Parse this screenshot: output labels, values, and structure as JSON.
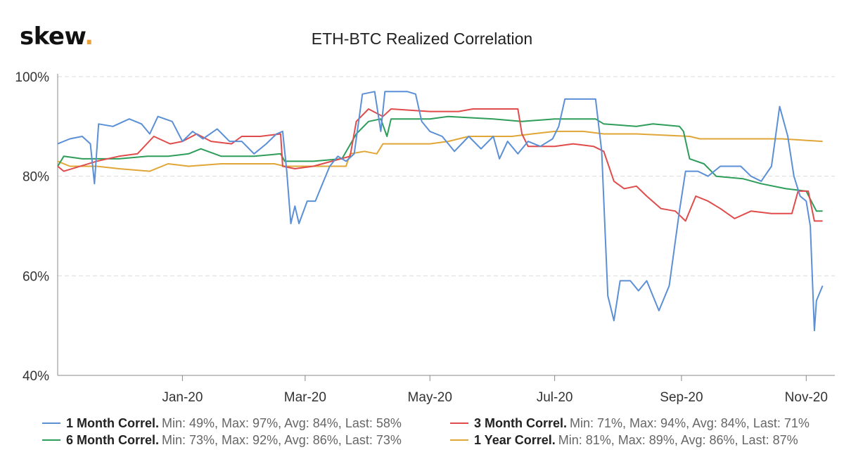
{
  "logo": {
    "text": "skew",
    "dot": "."
  },
  "chart_data": {
    "type": "line",
    "title": "ETH-BTC Realized Correlation",
    "ylim": [
      40,
      100
    ],
    "yticks": [
      "40%",
      "60%",
      "80%",
      "100%"
    ],
    "ytick_values": [
      40,
      60,
      80,
      100
    ],
    "x_range": [
      "2019-11-01",
      "2020-11-15"
    ],
    "xticks": [
      {
        "label": "Jan-20",
        "date": "2020-01-01"
      },
      {
        "label": "Mar-20",
        "date": "2020-03-01"
      },
      {
        "label": "May-20",
        "date": "2020-05-01"
      },
      {
        "label": "Jul-20",
        "date": "2020-07-01"
      },
      {
        "label": "Sep-20",
        "date": "2020-09-01"
      },
      {
        "label": "Nov-20",
        "date": "2020-11-01"
      }
    ],
    "grid": true,
    "legend_position": "bottom",
    "series": [
      {
        "name": "1 Month Correl.",
        "stats": "Min: 49%, Max: 97%, Avg: 84%, Last: 58%",
        "color": "#5b8fd6",
        "points": [
          [
            "2019-11-01",
            86.5
          ],
          [
            "2019-11-07",
            87.5
          ],
          [
            "2019-11-13",
            88
          ],
          [
            "2019-11-17",
            86.5
          ],
          [
            "2019-11-19",
            78.5
          ],
          [
            "2019-11-21",
            90.5
          ],
          [
            "2019-11-28",
            90
          ],
          [
            "2019-12-06",
            91.5
          ],
          [
            "2019-12-12",
            90.5
          ],
          [
            "2019-12-16",
            88.5
          ],
          [
            "2019-12-20",
            92
          ],
          [
            "2019-12-27",
            91
          ],
          [
            "2020-01-01",
            87
          ],
          [
            "2020-01-06",
            89
          ],
          [
            "2020-01-11",
            87.5
          ],
          [
            "2020-01-18",
            89.5
          ],
          [
            "2020-01-24",
            87
          ],
          [
            "2020-01-30",
            87
          ],
          [
            "2020-02-05",
            84.5
          ],
          [
            "2020-02-11",
            86.5
          ],
          [
            "2020-02-16",
            88.5
          ],
          [
            "2020-02-19",
            89
          ],
          [
            "2020-02-21",
            81
          ],
          [
            "2020-02-23",
            70.5
          ],
          [
            "2020-02-25",
            74
          ],
          [
            "2020-02-27",
            70.5
          ],
          [
            "2020-03-02",
            75
          ],
          [
            "2020-03-06",
            75
          ],
          [
            "2020-03-10",
            79
          ],
          [
            "2020-03-13",
            82
          ],
          [
            "2020-03-17",
            84
          ],
          [
            "2020-03-21",
            83
          ],
          [
            "2020-03-25",
            84.5
          ],
          [
            "2020-03-29",
            96.5
          ],
          [
            "2020-04-04",
            97
          ],
          [
            "2020-04-07",
            89
          ],
          [
            "2020-04-09",
            97
          ],
          [
            "2020-04-20",
            97
          ],
          [
            "2020-04-24",
            96.5
          ],
          [
            "2020-04-27",
            91
          ],
          [
            "2020-05-01",
            89
          ],
          [
            "2020-05-07",
            88
          ],
          [
            "2020-05-13",
            85
          ],
          [
            "2020-05-20",
            88
          ],
          [
            "2020-05-26",
            85.5
          ],
          [
            "2020-06-01",
            88
          ],
          [
            "2020-06-04",
            83.5
          ],
          [
            "2020-06-08",
            87
          ],
          [
            "2020-06-13",
            84.5
          ],
          [
            "2020-06-18",
            87
          ],
          [
            "2020-06-24",
            86
          ],
          [
            "2020-06-30",
            87.5
          ],
          [
            "2020-07-03",
            90
          ],
          [
            "2020-07-06",
            95.5
          ],
          [
            "2020-07-16",
            95.5
          ],
          [
            "2020-07-21",
            95.5
          ],
          [
            "2020-07-24",
            85
          ],
          [
            "2020-07-27",
            56
          ],
          [
            "2020-07-30",
            51
          ],
          [
            "2020-08-02",
            59
          ],
          [
            "2020-08-07",
            59
          ],
          [
            "2020-08-11",
            57
          ],
          [
            "2020-08-15",
            59
          ],
          [
            "2020-08-21",
            53
          ],
          [
            "2020-08-26",
            58
          ],
          [
            "2020-08-31",
            73
          ],
          [
            "2020-09-03",
            81
          ],
          [
            "2020-09-09",
            81
          ],
          [
            "2020-09-14",
            80
          ],
          [
            "2020-09-20",
            82
          ],
          [
            "2020-09-26",
            82
          ],
          [
            "2020-09-30",
            82
          ],
          [
            "2020-10-05",
            80
          ],
          [
            "2020-10-10",
            79
          ],
          [
            "2020-10-15",
            82
          ],
          [
            "2020-10-19",
            94
          ],
          [
            "2020-10-23",
            88
          ],
          [
            "2020-10-26",
            80
          ],
          [
            "2020-10-29",
            76
          ],
          [
            "2020-11-01",
            75
          ],
          [
            "2020-11-03",
            70
          ],
          [
            "2020-11-05",
            49
          ],
          [
            "2020-11-06",
            55
          ],
          [
            "2020-11-09",
            58
          ]
        ]
      },
      {
        "name": "3 Month Correl.",
        "stats": "Min: 71%, Max: 94%, Avg: 84%, Last: 71%",
        "color": "#e04b4b",
        "points": [
          [
            "2019-11-01",
            82
          ],
          [
            "2019-11-04",
            81
          ],
          [
            "2019-11-20",
            83
          ],
          [
            "2019-12-01",
            84
          ],
          [
            "2019-12-10",
            84.5
          ],
          [
            "2019-12-18",
            88
          ],
          [
            "2019-12-26",
            86.5
          ],
          [
            "2020-01-01",
            87
          ],
          [
            "2020-01-08",
            88.5
          ],
          [
            "2020-01-15",
            87
          ],
          [
            "2020-01-25",
            86.5
          ],
          [
            "2020-01-30",
            88
          ],
          [
            "2020-02-08",
            88
          ],
          [
            "2020-02-18",
            88.5
          ],
          [
            "2020-02-19",
            82
          ],
          [
            "2020-02-25",
            81.5
          ],
          [
            "2020-03-05",
            82
          ],
          [
            "2020-03-14",
            83
          ],
          [
            "2020-03-23",
            84
          ],
          [
            "2020-03-26",
            91
          ],
          [
            "2020-04-01",
            93.5
          ],
          [
            "2020-04-08",
            92
          ],
          [
            "2020-04-12",
            93.5
          ],
          [
            "2020-05-01",
            93
          ],
          [
            "2020-05-15",
            93
          ],
          [
            "2020-05-22",
            93.5
          ],
          [
            "2020-06-01",
            93.5
          ],
          [
            "2020-06-13",
            93.5
          ],
          [
            "2020-06-15",
            88.5
          ],
          [
            "2020-06-18",
            86
          ],
          [
            "2020-07-01",
            86
          ],
          [
            "2020-07-10",
            86.5
          ],
          [
            "2020-07-20",
            86
          ],
          [
            "2020-07-25",
            85
          ],
          [
            "2020-07-30",
            79
          ],
          [
            "2020-08-04",
            77.5
          ],
          [
            "2020-08-10",
            78
          ],
          [
            "2020-08-15",
            76
          ],
          [
            "2020-08-22",
            73.5
          ],
          [
            "2020-08-29",
            73
          ],
          [
            "2020-09-03",
            71
          ],
          [
            "2020-09-08",
            76
          ],
          [
            "2020-09-14",
            75
          ],
          [
            "2020-09-20",
            73.5
          ],
          [
            "2020-09-27",
            71.5
          ],
          [
            "2020-10-05",
            73
          ],
          [
            "2020-10-15",
            72.5
          ],
          [
            "2020-10-25",
            72.5
          ],
          [
            "2020-10-28",
            77
          ],
          [
            "2020-11-02",
            77
          ],
          [
            "2020-11-05",
            71
          ],
          [
            "2020-11-09",
            71
          ]
        ]
      },
      {
        "name": "6 Month Correl.",
        "stats": "Min: 73%, Max: 92%, Avg: 86%, Last: 73%",
        "color": "#2f9d5a",
        "points": [
          [
            "2019-11-01",
            82
          ],
          [
            "2019-11-04",
            84
          ],
          [
            "2019-11-13",
            83.5
          ],
          [
            "2019-12-01",
            83.5
          ],
          [
            "2019-12-15",
            84
          ],
          [
            "2019-12-25",
            84
          ],
          [
            "2020-01-04",
            84.5
          ],
          [
            "2020-01-10",
            85.5
          ],
          [
            "2020-01-20",
            84
          ],
          [
            "2020-02-05",
            84
          ],
          [
            "2020-02-18",
            84.5
          ],
          [
            "2020-02-20",
            83
          ],
          [
            "2020-03-05",
            83
          ],
          [
            "2020-03-19",
            83.5
          ],
          [
            "2020-03-26",
            88.5
          ],
          [
            "2020-04-01",
            91
          ],
          [
            "2020-04-07",
            91.5
          ],
          [
            "2020-04-10",
            88
          ],
          [
            "2020-04-12",
            91.5
          ],
          [
            "2020-05-01",
            91.5
          ],
          [
            "2020-05-10",
            92
          ],
          [
            "2020-06-01",
            91.5
          ],
          [
            "2020-06-15",
            91
          ],
          [
            "2020-07-01",
            91.5
          ],
          [
            "2020-07-21",
            91.5
          ],
          [
            "2020-07-25",
            90.5
          ],
          [
            "2020-08-10",
            90
          ],
          [
            "2020-08-18",
            90.5
          ],
          [
            "2020-08-31",
            90
          ],
          [
            "2020-09-02",
            89
          ],
          [
            "2020-09-05",
            83.5
          ],
          [
            "2020-09-12",
            82.5
          ],
          [
            "2020-09-18",
            80
          ],
          [
            "2020-10-01",
            79.5
          ],
          [
            "2020-10-10",
            78.5
          ],
          [
            "2020-10-22",
            77.5
          ],
          [
            "2020-11-01",
            77
          ],
          [
            "2020-11-06",
            73
          ],
          [
            "2020-11-09",
            73
          ]
        ]
      },
      {
        "name": "1 Year Correl.",
        "stats": "Min: 81%, Max: 89%, Avg: 86%, Last: 87%",
        "color": "#e0a637",
        "points": [
          [
            "2019-11-01",
            83
          ],
          [
            "2019-11-07",
            82
          ],
          [
            "2019-11-20",
            82
          ],
          [
            "2019-12-01",
            81.5
          ],
          [
            "2019-12-16",
            81
          ],
          [
            "2019-12-25",
            82.5
          ],
          [
            "2020-01-04",
            82
          ],
          [
            "2020-01-20",
            82.5
          ],
          [
            "2020-02-15",
            82.5
          ],
          [
            "2020-02-20",
            82
          ],
          [
            "2020-03-05",
            82
          ],
          [
            "2020-03-21",
            82
          ],
          [
            "2020-03-23",
            84.5
          ],
          [
            "2020-03-30",
            85
          ],
          [
            "2020-04-05",
            84.5
          ],
          [
            "2020-04-08",
            86.5
          ],
          [
            "2020-05-01",
            86.5
          ],
          [
            "2020-05-10",
            87
          ],
          [
            "2020-05-20",
            88
          ],
          [
            "2020-06-10",
            88
          ],
          [
            "2020-06-20",
            88.5
          ],
          [
            "2020-07-01",
            89
          ],
          [
            "2020-07-15",
            89
          ],
          [
            "2020-07-25",
            88.5
          ],
          [
            "2020-08-10",
            88.5
          ],
          [
            "2020-09-05",
            88
          ],
          [
            "2020-09-10",
            87.5
          ],
          [
            "2020-10-01",
            87.5
          ],
          [
            "2020-10-20",
            87.5
          ],
          [
            "2020-11-09",
            87
          ]
        ]
      }
    ]
  }
}
